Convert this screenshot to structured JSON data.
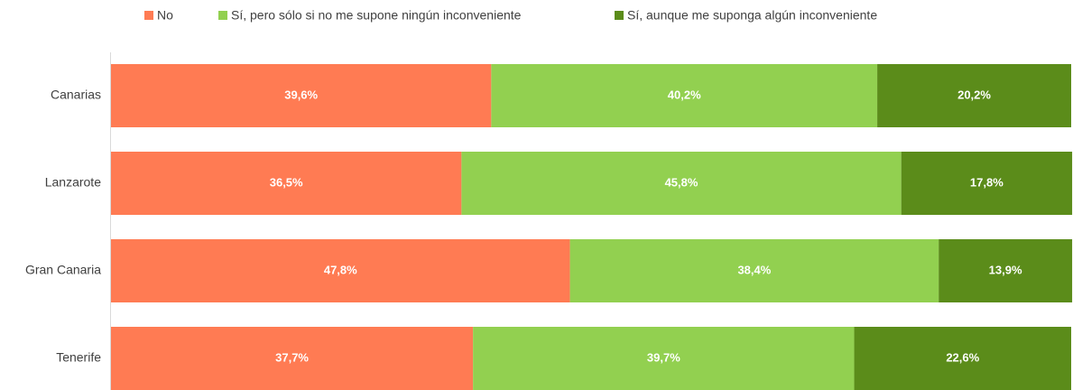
{
  "chart_data": {
    "type": "stacked-bar-horizontal",
    "categories": [
      "Canarias",
      "Lanzarote",
      "Gran Canaria",
      "Tenerife"
    ],
    "series": [
      {
        "name": "No",
        "color": "#ff7b53",
        "values": [
          39.6,
          36.5,
          47.8,
          37.7
        ],
        "value_labels": [
          "39,6%",
          "36,5%",
          "47,8%",
          "37,7%"
        ]
      },
      {
        "name": "Sí, pero sólo si no me supone ningún inconveniente",
        "color": "#92d050",
        "values": [
          40.2,
          45.8,
          38.4,
          39.7
        ],
        "value_labels": [
          "40,2%",
          "45,8%",
          "38,4%",
          "39,7%"
        ]
      },
      {
        "name": "Sí, aunque me suponga algún inconveniente",
        "color": "#5b8c1a",
        "values": [
          20.2,
          17.8,
          13.9,
          22.6
        ],
        "value_labels": [
          "20,2%",
          "17,8%",
          "13,9%",
          "22,6%"
        ]
      }
    ],
    "xlim": [
      0,
      100
    ],
    "legend": "top"
  }
}
